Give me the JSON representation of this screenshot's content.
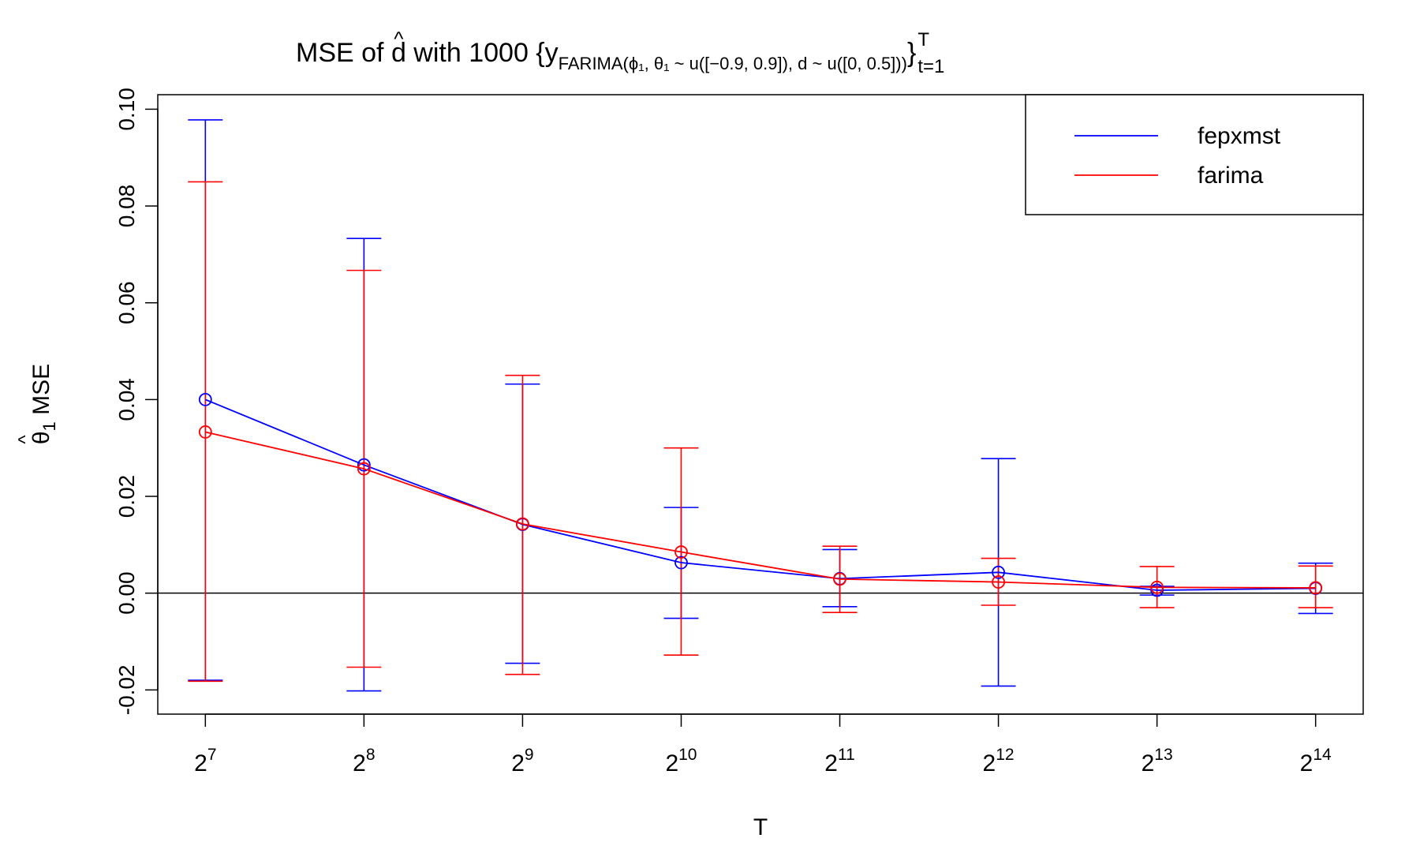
{
  "chart_data": {
    "type": "line",
    "title": {
      "main": "MSE of ",
      "hat_symbol": "^",
      "hat_base": "d",
      "mid": " with 1000  {y",
      "subscript": "FARIMA(ϕ₁, θ₁ ~ u([−0.9, 0.9]),  d ~ u([0, 0.5]))",
      "close": "}",
      "sup": "T",
      "sub_index": "t=1"
    },
    "xlabel": "T",
    "ylabel": {
      "hat_symbol": "^",
      "hat_base": "θ",
      "sub": "1",
      "rest": " MSE"
    },
    "x_ticks": [
      {
        "base": "2",
        "exp": "7"
      },
      {
        "base": "2",
        "exp": "8"
      },
      {
        "base": "2",
        "exp": "9"
      },
      {
        "base": "2",
        "exp": "10"
      },
      {
        "base": "2",
        "exp": "11"
      },
      {
        "base": "2",
        "exp": "12"
      },
      {
        "base": "2",
        "exp": "13"
      },
      {
        "base": "2",
        "exp": "14"
      }
    ],
    "x": [
      7,
      8,
      9,
      10,
      11,
      12,
      13,
      14
    ],
    "xlim": [
      6.7,
      14.3
    ],
    "ylim": [
      -0.025,
      0.103
    ],
    "y_ticks": [
      -0.02,
      0.0,
      0.02,
      0.04,
      0.06,
      0.08,
      0.1
    ],
    "y_tick_labels": [
      "-0.02",
      "0.00",
      "0.02",
      "0.04",
      "0.06",
      "0.08",
      "0.10"
    ],
    "reference_line_y": 0,
    "legend_position": "top-right",
    "series": [
      {
        "name": "fepxmst",
        "color": "#0000ff",
        "values": [
          0.04,
          0.0265,
          0.0142,
          0.0063,
          0.003,
          0.0043,
          0.0006,
          0.001
        ],
        "upper": [
          0.0978,
          0.0733,
          0.0432,
          0.0177,
          0.009,
          0.0278,
          0.0014,
          0.0062
        ],
        "lower": [
          -0.018,
          -0.0202,
          -0.0145,
          -0.0052,
          -0.0028,
          -0.0192,
          -0.0004,
          -0.0042
        ]
      },
      {
        "name": "farima",
        "color": "#ff0000",
        "values": [
          0.0333,
          0.0257,
          0.0143,
          0.0085,
          0.0029,
          0.0023,
          0.0012,
          0.0011
        ],
        "upper": [
          0.085,
          0.0667,
          0.045,
          0.03,
          0.0097,
          0.0072,
          0.0055,
          0.0056
        ],
        "lower": [
          -0.0182,
          -0.0153,
          -0.0168,
          -0.0128,
          -0.004,
          -0.0025,
          -0.003,
          -0.003
        ]
      }
    ]
  }
}
